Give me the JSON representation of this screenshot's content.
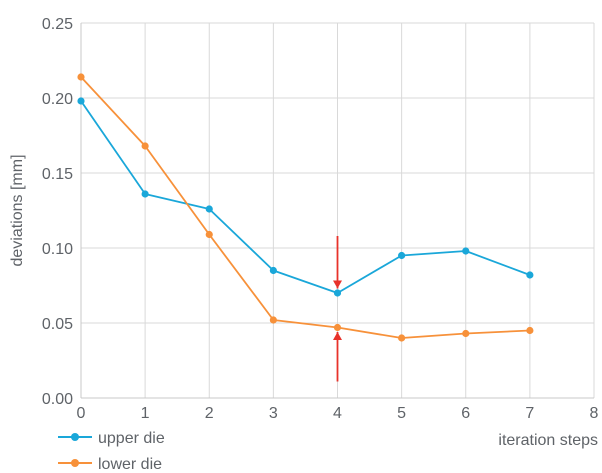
{
  "chart_data": {
    "type": "line",
    "title": "",
    "xlabel": "iteration steps",
    "ylabel": "deviations [mm]",
    "xlim": [
      0,
      8
    ],
    "ylim": [
      0,
      0.25
    ],
    "x_ticks": [
      "0",
      "1",
      "2",
      "3",
      "4",
      "5",
      "6",
      "7",
      "8"
    ],
    "y_ticks": [
      "0.00",
      "0.05",
      "0.10",
      "0.15",
      "0.20",
      "0.25"
    ],
    "grid": true,
    "legend_position": "bottom-left",
    "series": [
      {
        "name": "upper die",
        "color": "#1aa7d9",
        "x": [
          0,
          1,
          2,
          3,
          4,
          5,
          6,
          7
        ],
        "y": [
          0.198,
          0.136,
          0.126,
          0.085,
          0.07,
          0.095,
          0.098,
          0.082
        ]
      },
      {
        "name": "lower die",
        "color": "#f7913a",
        "x": [
          0,
          1,
          2,
          3,
          4,
          5,
          6,
          7
        ],
        "y": [
          0.214,
          0.168,
          0.109,
          0.052,
          0.047,
          0.04,
          0.043,
          0.045
        ]
      }
    ],
    "annotations": [
      {
        "type": "arrow-down",
        "x": 4,
        "y_from": 0.108,
        "y_to": 0.073,
        "color": "#e8322a"
      },
      {
        "type": "arrow-up",
        "x": 4,
        "y_from": 0.011,
        "y_to": 0.044,
        "color": "#e8322a"
      }
    ]
  }
}
